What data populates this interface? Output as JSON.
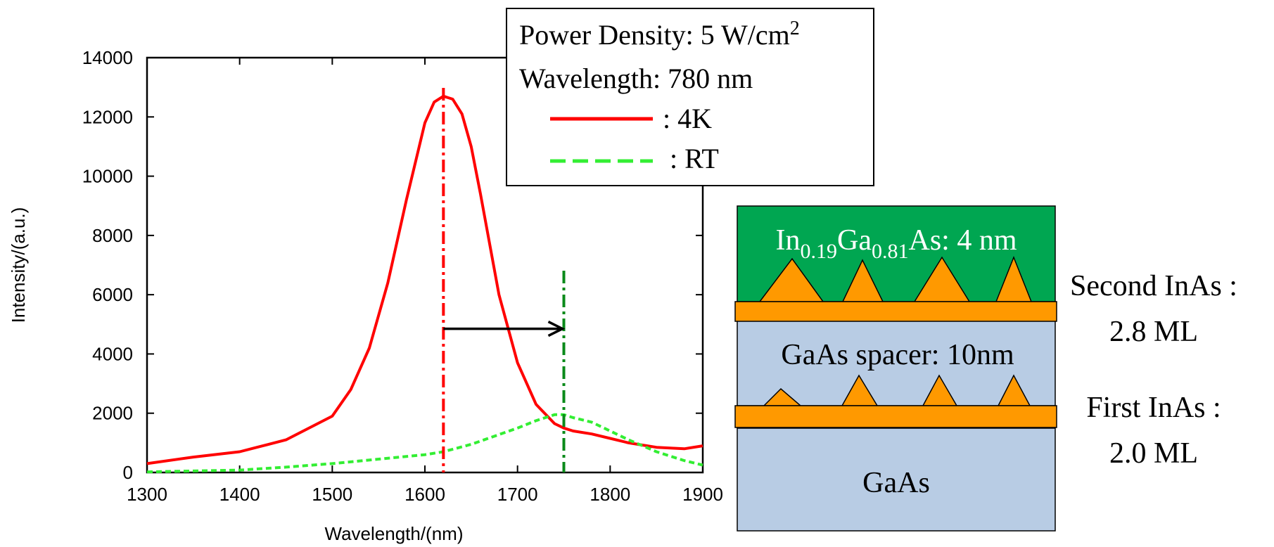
{
  "chart_data": {
    "type": "line",
    "xlabel": "Wavelength/(nm)",
    "ylabel": "Intensity/(a.u.)",
    "xlim": [
      1300,
      1900
    ],
    "ylim": [
      0,
      14000
    ],
    "x_ticks": [
      "1300",
      "1400",
      "1500",
      "1600",
      "1700",
      "1800",
      "1900"
    ],
    "y_ticks": [
      "0",
      "2000",
      "4000",
      "6000",
      "8000",
      "10000",
      "12000",
      "14000"
    ],
    "grid": false,
    "legend": {
      "position": "top-right",
      "lines": [
        "Power Density: 5 W/cm",
        "Wavelength: 780 nm"
      ],
      "superscript": "2"
    },
    "series": [
      {
        "name": ": 4K",
        "color": "#ff0000",
        "style": "solid",
        "x": [
          1300,
          1350,
          1400,
          1450,
          1500,
          1520,
          1540,
          1560,
          1580,
          1600,
          1610,
          1620,
          1630,
          1640,
          1650,
          1660,
          1680,
          1700,
          1720,
          1740,
          1750,
          1760,
          1780,
          1800,
          1820,
          1850,
          1880,
          1900
        ],
        "y": [
          300,
          520,
          700,
          1100,
          1900,
          2800,
          4200,
          6400,
          9200,
          11800,
          12500,
          12700,
          12600,
          12100,
          11000,
          9400,
          6000,
          3700,
          2300,
          1650,
          1500,
          1400,
          1300,
          1150,
          1000,
          850,
          800,
          900
        ]
      },
      {
        "name": ": RT",
        "color": "#33ee33",
        "style": "dashed",
        "x": [
          1300,
          1400,
          1450,
          1500,
          1550,
          1600,
          1620,
          1650,
          1700,
          1720,
          1740,
          1750,
          1760,
          1780,
          1800,
          1820,
          1850,
          1880,
          1900
        ],
        "y": [
          20,
          80,
          180,
          300,
          450,
          600,
          700,
          950,
          1500,
          1750,
          1950,
          1950,
          1850,
          1700,
          1400,
          1100,
          700,
          400,
          250
        ]
      }
    ],
    "annotations": {
      "red_dashdot_x": 1620,
      "green_dashdot_x": 1750,
      "arrow_from_x": 1620,
      "arrow_to_x": 1750,
      "arrow_y": 4850
    }
  },
  "structure": {
    "top_layer": {
      "prefix": "In",
      "sub1": "0.19",
      "mid": "Ga",
      "sub2": "0.81",
      "suffix": "As: 4 nm",
      "color": "#00a651"
    },
    "spacer_label": "GaAs spacer: 10nm",
    "substrate_label": "GaAs",
    "layer_color": "#b8cce4",
    "wetting_color": "#ff9900",
    "second_label_line1": "Second InAs :",
    "second_label_line2": "2.8 ML",
    "first_label_line1": "First InAs :",
    "first_label_line2": "2.0 ML"
  }
}
